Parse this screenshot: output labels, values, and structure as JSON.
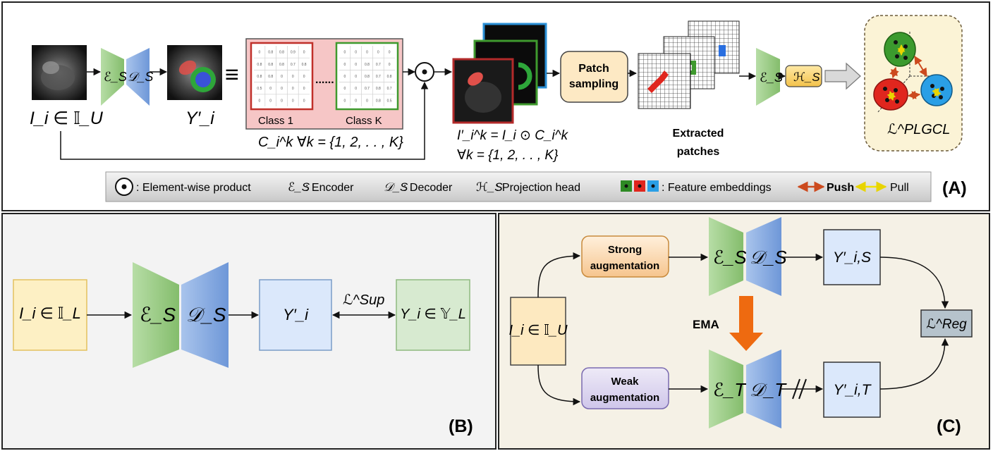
{
  "panel_a": {
    "tag": "(A)",
    "input_label": "I_i ∈ 𝕀_U",
    "encoder": "ℰ_S",
    "decoder": "𝒟_S",
    "pred_label": "Y′_i",
    "equiv": "≡",
    "class_first": "Class 1",
    "class_last": "Class K",
    "dots": "......",
    "class_grid_1": [
      "0",
      "0.8",
      "0.8",
      "0.9",
      "0",
      "0.8",
      "0.8",
      "0.8",
      "0.7",
      "0.8",
      "0.8",
      "0.8",
      "0",
      "0",
      "0",
      "0.5",
      "0",
      "0",
      "0",
      "0",
      "0",
      "0",
      "0",
      "0",
      "0"
    ],
    "class_grid_k": [
      "0",
      "0",
      "0",
      "0",
      "0",
      "0",
      "0",
      "0.8",
      "0.7",
      "0",
      "0",
      "0",
      "0.8",
      "0.7",
      "0.8",
      "0",
      "0",
      "0.7",
      "0.8",
      "0.7",
      "0",
      "0",
      "0",
      "0.8",
      "0.5"
    ],
    "mask_label": "C_i^k  ∀k = {1, 2, . . , K}",
    "product_symbol": "⊙",
    "masked_label_1": "I′_i^k = I_i ⊙ C_i^k",
    "masked_label_2": "∀k = {1, 2, . . , K}",
    "patch_sampling": [
      "Patch",
      "sampling"
    ],
    "extracted": [
      "Extracted",
      "patches"
    ],
    "proj_head": "ℋ_S",
    "loss_label": "ℒ^PLGCL"
  },
  "legend": {
    "product": ": Element-wise product",
    "encoder_sym": "ℰ_S",
    "encoder": ": Encoder",
    "decoder_sym": "𝒟_S",
    "decoder": ": Decoder",
    "head_sym": "ℋ_S",
    "head": ": Projection head",
    "embeddings": ": Feature embeddings",
    "push": "Push",
    "pull": "Pull"
  },
  "panel_b": {
    "tag": "(B)",
    "input": "I_i ∈ 𝕀_L",
    "encoder": "ℰ_S",
    "decoder": "𝒟_S",
    "pred": "Y′_i",
    "loss": "ℒ^Sup",
    "gt": "Y_i ∈ 𝕐_L"
  },
  "panel_c": {
    "tag": "(C)",
    "input": "I_i ∈ 𝕀_U",
    "strong": [
      "Strong",
      "augmentation"
    ],
    "weak": [
      "Weak",
      "augmentation"
    ],
    "enc_s": "ℰ_S",
    "dec_s": "𝒟_S",
    "enc_t": "ℰ_T",
    "dec_t": "𝒟_T",
    "ema": "EMA",
    "pred_s": "Y′_i,S",
    "pred_t": "Y′_i,T",
    "loss": "ℒ^Reg"
  },
  "colors": {
    "encoder_green": "#9fd08b",
    "decoder_blue": "#7fa8e0",
    "push_red": "#cc4a1e",
    "pull_yellow": "#f2e200",
    "ema_orange": "#ee6a10",
    "class1_red": "#c0302a",
    "classk_green": "#3f9a2e",
    "panel_bg": "#f3f2ee"
  }
}
